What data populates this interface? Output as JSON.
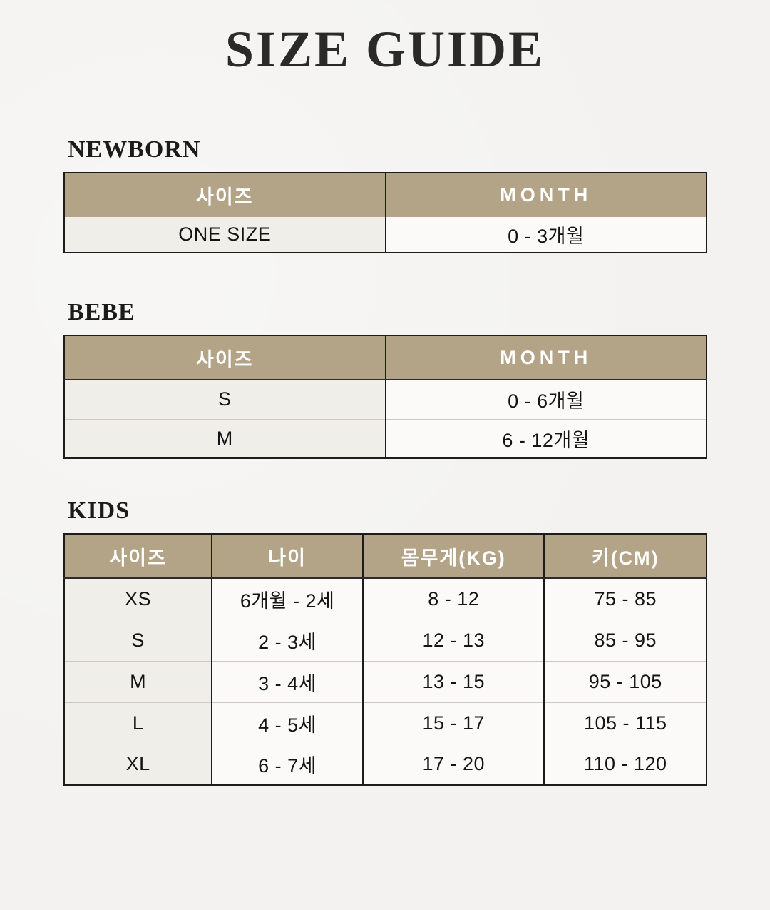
{
  "page": {
    "title": "SIZE GUIDE"
  },
  "colors": {
    "header_bg": "#b3a488",
    "header_text": "#ffffff",
    "page_bg": "#f3f2f0",
    "first_col_bg": "#f0eee9",
    "cell_bg": "#fbfaf8",
    "border_dark": "#1c1c1c"
  },
  "tables": [
    {
      "id": "newborn",
      "heading": "NEWBORN",
      "columns": [
        "사이즈",
        "MONTH"
      ],
      "rows": [
        [
          "ONE SIZE",
          "0 - 3개월"
        ]
      ]
    },
    {
      "id": "bebe",
      "heading": "BEBE",
      "columns": [
        "사이즈",
        "MONTH"
      ],
      "rows": [
        [
          "S",
          "0 - 6개월"
        ],
        [
          "M",
          "6 - 12개월"
        ]
      ]
    },
    {
      "id": "kids",
      "heading": "KIDS",
      "columns": [
        "사이즈",
        "나이",
        "몸무게(KG)",
        "키(CM)"
      ],
      "rows": [
        [
          "XS",
          "6개월 - 2세",
          "8 - 12",
          "75 - 85"
        ],
        [
          "S",
          "2 - 3세",
          "12 - 13",
          "85 - 95"
        ],
        [
          "M",
          "3 - 4세",
          "13 - 15",
          "95 - 105"
        ],
        [
          "L",
          "4 - 5세",
          "15 - 17",
          "105 - 115"
        ],
        [
          "XL",
          "6 - 7세",
          "17 - 20",
          "110 - 120"
        ]
      ]
    }
  ]
}
